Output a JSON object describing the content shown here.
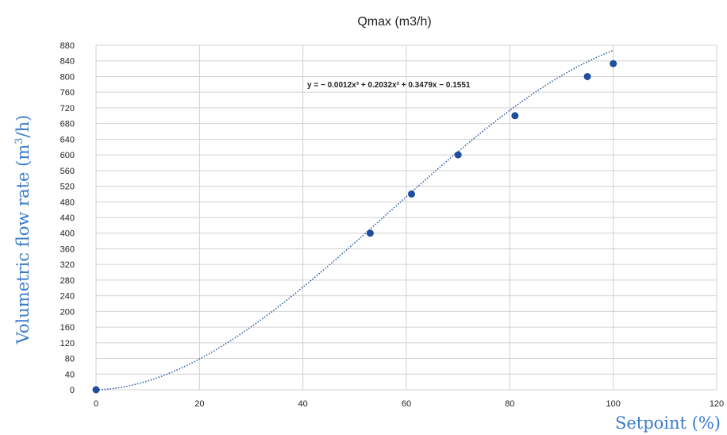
{
  "chart_data": {
    "type": "scatter",
    "title": "Qmax  (m3/h)",
    "xlabel": "Setpoint (%)",
    "ylabel": "Volumetric flow rate (m3/h)",
    "xlim": [
      0,
      120
    ],
    "ylim": [
      0,
      880
    ],
    "x_ticks": [
      "0",
      "20",
      "40",
      "60",
      "80",
      "100",
      "120"
    ],
    "y_ticks": [
      "0",
      "40",
      "80",
      "120",
      "160",
      "200",
      "240",
      "280",
      "320",
      "360",
      "400",
      "440",
      "480",
      "520",
      "560",
      "600",
      "640",
      "680",
      "720",
      "760",
      "800",
      "840",
      "880"
    ],
    "grid": true,
    "points": {
      "x": [
        0,
        53,
        61,
        70,
        81,
        95,
        100
      ],
      "y": [
        0,
        400,
        500,
        600,
        700,
        800,
        833
      ]
    },
    "trendline": {
      "type": "polynomial",
      "coefficients": [
        -0.0012,
        0.2032,
        0.3479,
        -0.1551
      ],
      "equation": "y = − 0.0012x³ + 0.2032x² + 0.3479x − 0.1551"
    },
    "colors": {
      "points": "#1f4e9c",
      "trendline": "#2e5fa8",
      "axis_title": "#3a7bc8",
      "grid": "#d0d0d0"
    }
  }
}
